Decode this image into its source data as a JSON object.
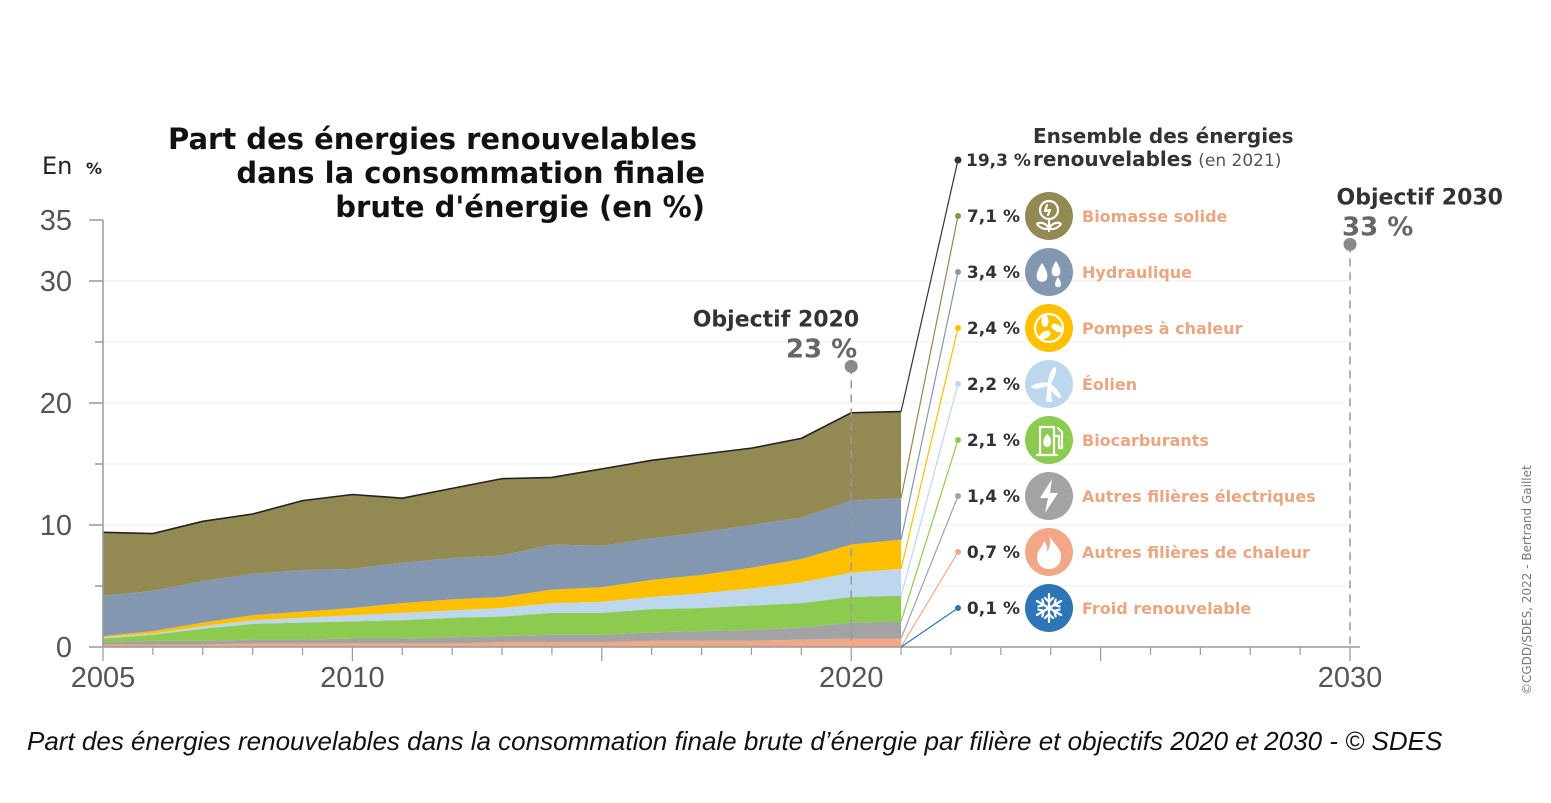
{
  "chart_data": {
    "type": "area",
    "title_lines": [
      "Part des énergies renouvelables",
      "dans la consommation finale",
      "brute d'énergie (en %)"
    ],
    "unit_prefix": "En",
    "unit_symbol": "%",
    "ylim": [
      0,
      35
    ],
    "xlim": [
      2005,
      2030
    ],
    "y_ticks": [
      {
        "value": 0,
        "label": "0"
      },
      {
        "value": 10,
        "label": "10"
      },
      {
        "value": 20,
        "label": "20"
      },
      {
        "value": 30,
        "label": "30"
      },
      {
        "value": 35,
        "label": "35"
      }
    ],
    "x_ticks": [
      {
        "value": 2005,
        "label": "2005"
      },
      {
        "value": 2010,
        "label": "2010"
      },
      {
        "value": 2020,
        "label": "2020"
      },
      {
        "value": 2030,
        "label": "2030"
      }
    ],
    "grid": true,
    "x": [
      2005,
      2006,
      2007,
      2008,
      2009,
      2010,
      2011,
      2012,
      2013,
      2014,
      2015,
      2016,
      2017,
      2018,
      2019,
      2020,
      2021
    ],
    "series": [
      {
        "name": "Autres filières de chaleur",
        "color": "#F2A886",
        "values": [
          0.2,
          0.2,
          0.2,
          0.3,
          0.3,
          0.3,
          0.3,
          0.3,
          0.4,
          0.4,
          0.4,
          0.5,
          0.5,
          0.5,
          0.6,
          0.7,
          0.7
        ]
      },
      {
        "name": "Autres filières électriques",
        "color": "#A3A3A3",
        "values": [
          0.2,
          0.3,
          0.3,
          0.3,
          0.3,
          0.4,
          0.4,
          0.5,
          0.5,
          0.6,
          0.6,
          0.7,
          0.8,
          0.9,
          1.0,
          1.3,
          1.4
        ]
      },
      {
        "name": "Biocarburants",
        "color": "#8CCB4F",
        "values": [
          0.3,
          0.5,
          1.0,
          1.3,
          1.4,
          1.4,
          1.5,
          1.6,
          1.6,
          1.8,
          1.8,
          1.9,
          1.9,
          2.0,
          2.0,
          2.1,
          2.1
        ]
      },
      {
        "name": "Éolien",
        "color": "#BDD7EE",
        "values": [
          0.1,
          0.1,
          0.2,
          0.3,
          0.4,
          0.5,
          0.6,
          0.6,
          0.7,
          0.8,
          0.9,
          1.0,
          1.2,
          1.4,
          1.7,
          2.0,
          2.2
        ]
      },
      {
        "name": "Pompes à chaleur",
        "color": "#FFC000",
        "values": [
          0.1,
          0.2,
          0.3,
          0.4,
          0.5,
          0.6,
          0.8,
          0.9,
          0.9,
          1.1,
          1.2,
          1.4,
          1.5,
          1.7,
          1.9,
          2.3,
          2.4
        ]
      },
      {
        "name": "Hydraulique",
        "color": "#8497B0",
        "values": [
          3.3,
          3.3,
          3.4,
          3.4,
          3.4,
          3.2,
          3.3,
          3.4,
          3.4,
          3.7,
          3.4,
          3.4,
          3.5,
          3.5,
          3.4,
          3.6,
          3.4
        ]
      },
      {
        "name": "Biomasse solide",
        "color": "#938953",
        "values": [
          5.2,
          4.7,
          4.9,
          4.9,
          5.7,
          6.1,
          5.3,
          5.7,
          6.3,
          5.5,
          6.3,
          6.4,
          6.4,
          6.3,
          6.5,
          7.2,
          7.1
        ]
      }
    ],
    "objectives": [
      {
        "year": 2020,
        "label": "Objectif 2020",
        "value": 23,
        "value_label": "23 %"
      },
      {
        "year": 2030,
        "label": "Objectif 2030",
        "value": 33,
        "value_label": "33 %"
      }
    ],
    "legend_2021": {
      "total": {
        "value_label": "19,3 %",
        "label_line1": "Ensemble des énergies",
        "label_line2": "renouvelables",
        "label_note": "(en 2021)"
      },
      "items": [
        {
          "value_label": "7,1 %",
          "label": "Biomasse solide",
          "icon": "flower-icon",
          "color": "#938953"
        },
        {
          "value_label": "3,4 %",
          "label": "Hydraulique",
          "icon": "water-drops-icon",
          "color": "#8497B0"
        },
        {
          "value_label": "2,4 %",
          "label": "Pompes à chaleur",
          "icon": "fan-icon",
          "color": "#FFC000"
        },
        {
          "value_label": "2,2 %",
          "label": "Éolien",
          "icon": "wind-turbine-icon",
          "color": "#BDD7EE"
        },
        {
          "value_label": "2,1 %",
          "label": "Biocarburants",
          "icon": "fuel-pump-icon",
          "color": "#8CCB4F"
        },
        {
          "value_label": "1,4 %",
          "label": "Autres filières électriques",
          "icon": "lightning-icon",
          "color": "#A3A3A3"
        },
        {
          "value_label": "0,7 %",
          "label": "Autres filières de chaleur",
          "icon": "flame-icon",
          "color": "#F2A886"
        },
        {
          "value_label": "0,1 %",
          "label": "Froid renouvelable",
          "icon": "snowflake-icon",
          "color": "#2E75B6"
        }
      ]
    },
    "credit": "©CGDD/SDES, 2022 - Bertrand Gaillet"
  },
  "caption": "Part des énergies renouvelables dans la consommation finale brute d’énergie par filière et objectifs 2020 et 2030 - © SDES"
}
